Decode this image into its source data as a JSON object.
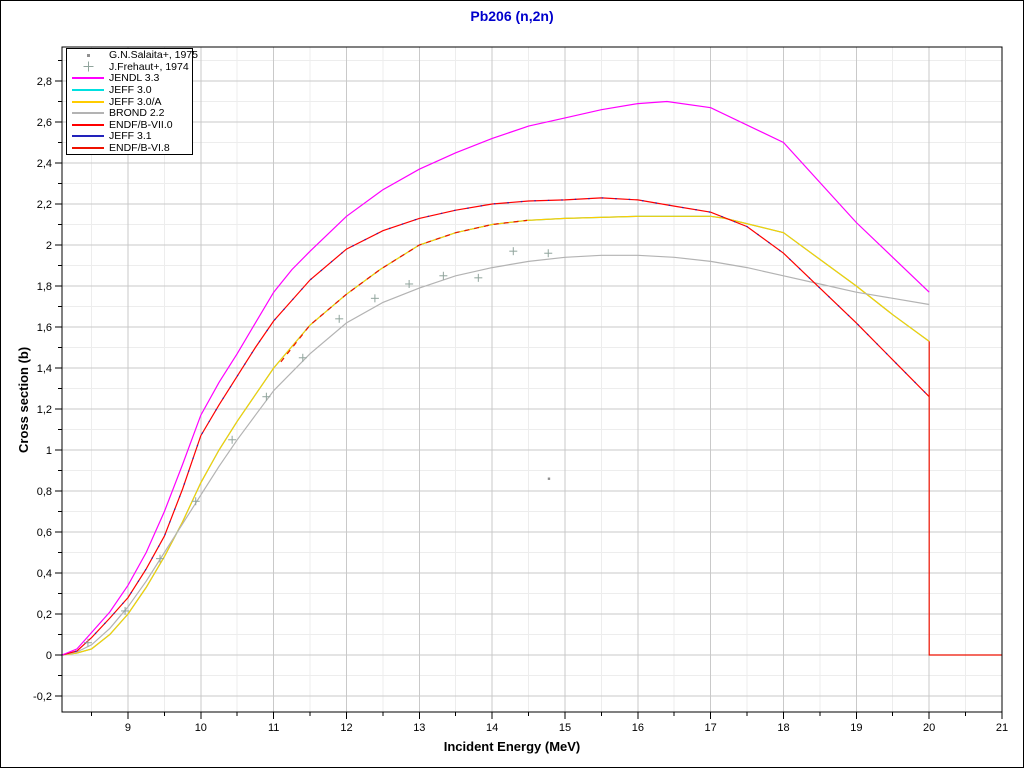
{
  "chart_data": {
    "type": "line",
    "title": "Pb206 (n,2n)",
    "title_color": "#0000cc",
    "xlabel": "Incident Energy (MeV)",
    "ylabel": "Cross section (b)",
    "x_range": [
      8.094,
      21
    ],
    "y_range": [
      -0.278,
      2.966
    ],
    "x_ticks": {
      "values": [
        9,
        10,
        11,
        12,
        13,
        14,
        15,
        16,
        17,
        18,
        19,
        20,
        21
      ],
      "labels": [
        "9",
        "10",
        "11",
        "12",
        "13",
        "14",
        "15",
        "16",
        "17",
        "18",
        "19",
        "20",
        "21"
      ],
      "minor_step": 0.5
    },
    "y_ticks": {
      "values": [
        -0.2,
        0,
        0.2,
        0.4,
        0.6,
        0.8,
        1,
        1.2,
        1.4,
        1.6,
        1.8,
        2,
        2.2,
        2.4,
        2.6,
        2.8
      ],
      "labels": [
        "-0,2",
        "0",
        "0,2",
        "0,4",
        "0,6",
        "0,8",
        "1",
        "1,2",
        "1,4",
        "1,6",
        "1,8",
        "2",
        "2,2",
        "2,4",
        "2,6",
        "2,8"
      ],
      "minor_step": 0.1
    },
    "grid": {
      "major_color": "#c9c9c9",
      "minor_color": "#ededed",
      "border_color": "#000000"
    },
    "legend": {
      "position": "top-left",
      "entries": [
        {
          "label": "G.N.Salaita+, 1975",
          "marker": "dot",
          "color": "#909090"
        },
        {
          "label": "J.Frehaut+, 1974",
          "marker": "plus",
          "color": "#90a49c"
        },
        {
          "label": "JENDL 3.3",
          "marker": "line",
          "color": "#ff00ff"
        },
        {
          "label": "JEFF 3.0",
          "marker": "line",
          "color": "#00e0e0"
        },
        {
          "label": "JEFF 3.0/A",
          "marker": "line",
          "color": "#ffcc00"
        },
        {
          "label": "BROND 2.2",
          "marker": "line",
          "color": "#b3b3b3"
        },
        {
          "label": "ENDF/B-VII.0",
          "marker": "line",
          "color": "#ff0000"
        },
        {
          "label": "JEFF 3.1",
          "marker": "line",
          "color": "#2222bb"
        },
        {
          "label": "ENDF/B-VI.8",
          "marker": "line",
          "color": "#ee1100"
        }
      ]
    },
    "series": [
      {
        "name": "JEFF 3.0",
        "type": "line",
        "color": "#00e0e0",
        "width": 1.2,
        "points": [
          [
            8.094,
            0
          ],
          [
            8.3,
            0.01
          ],
          [
            8.5,
            0.03
          ],
          [
            8.75,
            0.1
          ],
          [
            9,
            0.2
          ],
          [
            9.25,
            0.33
          ],
          [
            9.5,
            0.48
          ],
          [
            9.75,
            0.65
          ],
          [
            10,
            0.84
          ],
          [
            10.25,
            1
          ],
          [
            10.5,
            1.14
          ],
          [
            10.75,
            1.27
          ],
          [
            11,
            1.4
          ],
          [
            11.5,
            1.61
          ],
          [
            12,
            1.76
          ],
          [
            12.46,
            1.88
          ],
          [
            13,
            2
          ],
          [
            13.5,
            2.06
          ],
          [
            14,
            2.1
          ],
          [
            14.48,
            2.12
          ],
          [
            15,
            2.13
          ],
          [
            16,
            2.14
          ],
          [
            17,
            2.14
          ],
          [
            17.2,
            2.13
          ],
          [
            18,
            2.06
          ],
          [
            18.5,
            1.93
          ],
          [
            19,
            1.8
          ],
          [
            19.5,
            1.66
          ],
          [
            20,
            1.53
          ]
        ]
      },
      {
        "name": "JEFF 3.0/A",
        "type": "line",
        "color": "#ffcc00",
        "width": 1.2,
        "points": [
          [
            8.094,
            0
          ],
          [
            8.3,
            0.01
          ],
          [
            8.5,
            0.03
          ],
          [
            8.75,
            0.1
          ],
          [
            9,
            0.2
          ],
          [
            9.25,
            0.33
          ],
          [
            9.5,
            0.48
          ],
          [
            9.75,
            0.65
          ],
          [
            10,
            0.84
          ],
          [
            10.25,
            1
          ],
          [
            10.5,
            1.14
          ],
          [
            10.75,
            1.27
          ],
          [
            11,
            1.4
          ],
          [
            11.5,
            1.61
          ],
          [
            12,
            1.76
          ],
          [
            12.46,
            1.88
          ],
          [
            13,
            2
          ],
          [
            13.5,
            2.06
          ],
          [
            14,
            2.1
          ],
          [
            14.48,
            2.12
          ],
          [
            15,
            2.13
          ],
          [
            16,
            2.14
          ],
          [
            17,
            2.14
          ],
          [
            17.2,
            2.13
          ],
          [
            18,
            2.06
          ],
          [
            18.5,
            1.93
          ],
          [
            19,
            1.8
          ],
          [
            19.5,
            1.66
          ],
          [
            20,
            1.53
          ]
        ]
      },
      {
        "name": "BROND 2.2",
        "type": "line",
        "color": "#b3b3b3",
        "width": 1.2,
        "points": [
          [
            8.094,
            0
          ],
          [
            8.3,
            0.015
          ],
          [
            8.5,
            0.05
          ],
          [
            8.75,
            0.13
          ],
          [
            9,
            0.235
          ],
          [
            9.25,
            0.36
          ],
          [
            9.5,
            0.5
          ],
          [
            9.75,
            0.64
          ],
          [
            10,
            0.78
          ],
          [
            10.25,
            0.92
          ],
          [
            10.5,
            1.05
          ],
          [
            10.75,
            1.17
          ],
          [
            11,
            1.29
          ],
          [
            11.5,
            1.47
          ],
          [
            12,
            1.62
          ],
          [
            12.5,
            1.72
          ],
          [
            13,
            1.79
          ],
          [
            13.5,
            1.85
          ],
          [
            14,
            1.89
          ],
          [
            14.5,
            1.92
          ],
          [
            15,
            1.94
          ],
          [
            15.5,
            1.95
          ],
          [
            16,
            1.95
          ],
          [
            16.5,
            1.94
          ],
          [
            17,
            1.92
          ],
          [
            17.5,
            1.89
          ],
          [
            18,
            1.85
          ],
          [
            18.5,
            1.81
          ],
          [
            19,
            1.77
          ],
          [
            19.5,
            1.74
          ],
          [
            20,
            1.71
          ]
        ]
      },
      {
        "name": "ENDF/B-VII.0",
        "type": "line",
        "color": "#ff0000",
        "width": 1.2,
        "points": [
          [
            8.094,
            0
          ],
          [
            8.3,
            0.02
          ],
          [
            8.5,
            0.085
          ],
          [
            8.75,
            0.18
          ],
          [
            9,
            0.28
          ],
          [
            9.25,
            0.42
          ],
          [
            9.5,
            0.58
          ],
          [
            9.75,
            0.81
          ],
          [
            10,
            1.07
          ],
          [
            10.25,
            1.22
          ],
          [
            10.5,
            1.36
          ],
          [
            10.75,
            1.5
          ],
          [
            11,
            1.63
          ],
          [
            11.5,
            1.83
          ],
          [
            12,
            1.98
          ],
          [
            12.5,
            2.07
          ],
          [
            13,
            2.13
          ],
          [
            13.5,
            2.17
          ],
          [
            14,
            2.2
          ],
          [
            14.5,
            2.215
          ],
          [
            15,
            2.22
          ],
          [
            15.5,
            2.23
          ],
          [
            16,
            2.22
          ],
          [
            16.5,
            2.19
          ],
          [
            17,
            2.16
          ],
          [
            17.5,
            2.09
          ],
          [
            18,
            1.96
          ],
          [
            18.5,
            1.79
          ],
          [
            19,
            1.62
          ],
          [
            19.5,
            1.44
          ],
          [
            20,
            1.26
          ]
        ]
      },
      {
        "name": "JEFF 3.1",
        "type": "line",
        "color": "#2222bb",
        "width": 1.2,
        "dash": "1.5 12",
        "points": [
          [
            8.094,
            0
          ],
          [
            8.3,
            0.02
          ],
          [
            8.5,
            0.085
          ],
          [
            8.75,
            0.18
          ],
          [
            9,
            0.28
          ],
          [
            9.25,
            0.42
          ],
          [
            9.5,
            0.58
          ],
          [
            9.75,
            0.81
          ],
          [
            10,
            1.07
          ],
          [
            10.25,
            1.22
          ],
          [
            10.5,
            1.36
          ],
          [
            10.75,
            1.5
          ],
          [
            11,
            1.63
          ],
          [
            11.5,
            1.83
          ],
          [
            12,
            1.98
          ],
          [
            12.5,
            2.07
          ],
          [
            13,
            2.13
          ],
          [
            13.5,
            2.17
          ],
          [
            14,
            2.2
          ],
          [
            14.5,
            2.215
          ],
          [
            15,
            2.22
          ],
          [
            15.5,
            2.23
          ],
          [
            16,
            2.22
          ],
          [
            16.5,
            2.19
          ],
          [
            17,
            2.16
          ],
          [
            17.5,
            2.09
          ],
          [
            18,
            1.96
          ],
          [
            18.5,
            1.79
          ],
          [
            19,
            1.62
          ],
          [
            19.5,
            1.44
          ],
          [
            20,
            1.26
          ]
        ]
      },
      {
        "name": "ENDF/B-VI.8",
        "type": "line",
        "color": "#ee1100",
        "width": 1.2,
        "dash": "5 5",
        "points": [
          [
            11.1,
            1.43
          ],
          [
            11.5,
            1.61
          ],
          [
            12,
            1.76
          ],
          [
            12.46,
            1.88
          ],
          [
            13,
            2
          ],
          [
            13.5,
            2.06
          ],
          [
            14,
            2.1
          ],
          [
            14.48,
            2.12
          ]
        ]
      },
      {
        "name": "ENDF/B-VI.8 cutoff",
        "type": "line",
        "color": "#ee1100",
        "width": 1.2,
        "points": [
          [
            20,
            1.53
          ],
          [
            20,
            0
          ],
          [
            21,
            0
          ]
        ]
      },
      {
        "name": "JENDL 3.3",
        "type": "line",
        "color": "#ff00ff",
        "width": 1.2,
        "points": [
          [
            8.094,
            0
          ],
          [
            8.3,
            0.03
          ],
          [
            8.5,
            0.11
          ],
          [
            8.75,
            0.21
          ],
          [
            9,
            0.34
          ],
          [
            9.25,
            0.5
          ],
          [
            9.5,
            0.7
          ],
          [
            9.75,
            0.93
          ],
          [
            10,
            1.17
          ],
          [
            10.25,
            1.33
          ],
          [
            10.5,
            1.47
          ],
          [
            10.75,
            1.62
          ],
          [
            11,
            1.77
          ],
          [
            11.25,
            1.88
          ],
          [
            11.5,
            1.97
          ],
          [
            12,
            2.14
          ],
          [
            12.5,
            2.27
          ],
          [
            13,
            2.37
          ],
          [
            13.5,
            2.45
          ],
          [
            14,
            2.52
          ],
          [
            14.5,
            2.58
          ],
          [
            15,
            2.62
          ],
          [
            15.5,
            2.66
          ],
          [
            16,
            2.69
          ],
          [
            16.4,
            2.7
          ],
          [
            17,
            2.67
          ],
          [
            18,
            2.5
          ],
          [
            19,
            2.11
          ],
          [
            20,
            1.77
          ]
        ]
      },
      {
        "name": "J.Frehaut+, 1974",
        "type": "scatter",
        "marker": "plus",
        "color": "#90a49c",
        "points": [
          [
            8.45,
            0.06
          ],
          [
            8.96,
            0.215
          ],
          [
            9.44,
            0.47
          ],
          [
            9.93,
            0.75
          ],
          [
            10.43,
            1.05
          ],
          [
            10.9,
            1.26
          ],
          [
            11.4,
            1.45
          ],
          [
            11.9,
            1.64
          ],
          [
            12.39,
            1.74
          ],
          [
            12.86,
            1.81
          ],
          [
            13.33,
            1.85
          ],
          [
            13.81,
            1.84
          ],
          [
            14.29,
            1.97
          ],
          [
            14.77,
            1.96
          ]
        ]
      },
      {
        "name": "G.N.Salaita+, 1975",
        "type": "scatter",
        "marker": "dot",
        "color": "#909090",
        "points": [
          [
            14.78,
            0.86
          ]
        ]
      }
    ]
  }
}
